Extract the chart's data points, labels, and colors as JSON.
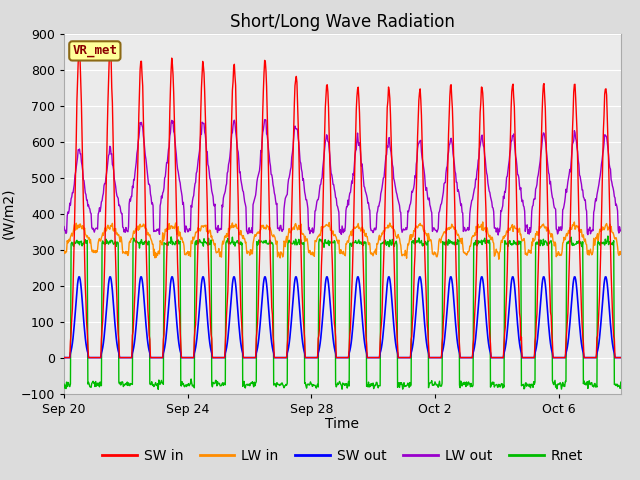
{
  "title": "Short/Long Wave Radiation",
  "ylabel": "(W/m2)",
  "xlabel": "Time",
  "ylim": [
    -100,
    900
  ],
  "yticks": [
    -100,
    0,
    100,
    200,
    300,
    400,
    500,
    600,
    700,
    800,
    900
  ],
  "label_box": "VR_met",
  "series": {
    "SW_in": {
      "color": "#ff0000",
      "label": "SW in"
    },
    "LW_in": {
      "color": "#ff8c00",
      "label": "LW in"
    },
    "SW_out": {
      "color": "#0000ff",
      "label": "SW out"
    },
    "LW_out": {
      "color": "#9900cc",
      "label": "LW out"
    },
    "Rnet": {
      "color": "#00bb00",
      "label": "Rnet"
    }
  },
  "xtick_labels": [
    "Sep 20",
    "Sep 24",
    "Sep 28",
    "Oct 2",
    "Oct 6"
  ],
  "xtick_positions": [
    0,
    4,
    8,
    12,
    16
  ],
  "n_days": 18,
  "bg_color": "#dcdcdc",
  "plot_bg_color": "#ebebeb",
  "grid_color": "#ffffff",
  "title_fontsize": 12,
  "legend_fontsize": 10,
  "axis_fontsize": 10,
  "tick_fontsize": 9
}
